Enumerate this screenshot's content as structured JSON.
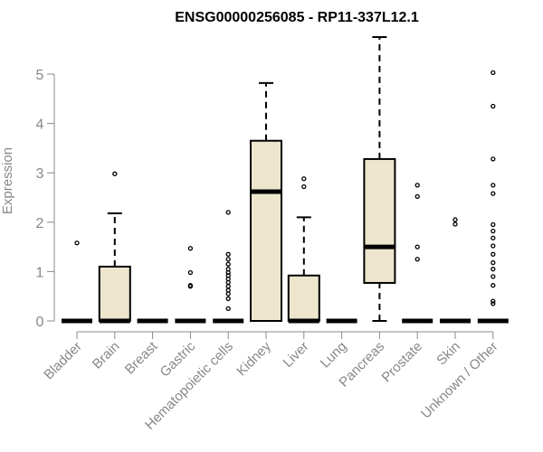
{
  "chart_data": {
    "type": "boxplot",
    "title": "ENSG00000256085 - RP11-337L12.1",
    "xlabel": "",
    "ylabel": "Expression",
    "ylim": [
      0,
      5.5
    ],
    "yticks": [
      "0",
      "1",
      "2",
      "3",
      "4",
      "5"
    ],
    "box_fill": "#ede6cd",
    "categories": [
      "Bladder",
      "Brain",
      "Breast",
      "Gastric",
      "Hematopoietic cells",
      "Kidney",
      "Liver",
      "Lung",
      "Pancreas",
      "Prostate",
      "Skin",
      "Unknown / Other"
    ],
    "boxes": [
      {
        "min": 0,
        "q1": 0,
        "median": 0,
        "q3": 0,
        "max": 0,
        "outliers": [
          1.58
        ]
      },
      {
        "min": 0,
        "q1": 0,
        "median": 0,
        "q3": 1.1,
        "max": 2.18,
        "outliers": [
          2.98
        ]
      },
      {
        "min": 0,
        "q1": 0,
        "median": 0,
        "q3": 0,
        "max": 0,
        "outliers": []
      },
      {
        "min": 0,
        "q1": 0,
        "median": 0,
        "q3": 0,
        "max": 0,
        "outliers": [
          0.7,
          0.72,
          0.98,
          1.47
        ]
      },
      {
        "min": 0,
        "q1": 0,
        "median": 0,
        "q3": 0,
        "max": 0,
        "outliers": [
          0.25,
          0.45,
          0.55,
          0.62,
          0.7,
          0.78,
          0.85,
          0.92,
          0.98,
          1.05,
          1.15,
          1.25,
          1.35,
          2.2
        ]
      },
      {
        "min": 0,
        "q1": 0,
        "median": 2.62,
        "q3": 3.65,
        "max": 4.82,
        "outliers": []
      },
      {
        "min": 0,
        "q1": 0,
        "median": 0,
        "q3": 0.92,
        "max": 2.1,
        "outliers": [
          2.72,
          2.88
        ]
      },
      {
        "min": 0,
        "q1": 0,
        "median": 0,
        "q3": 0,
        "max": 0,
        "outliers": []
      },
      {
        "min": 0,
        "q1": 0.77,
        "median": 1.5,
        "q3": 3.28,
        "max": 5.75,
        "outliers": []
      },
      {
        "min": 0,
        "q1": 0,
        "median": 0,
        "q3": 0,
        "max": 0,
        "outliers": [
          1.25,
          1.5,
          2.52,
          2.75
        ]
      },
      {
        "min": 0,
        "q1": 0,
        "median": 0,
        "q3": 0,
        "max": 0,
        "outliers": [
          1.96,
          2.05
        ]
      },
      {
        "min": 0,
        "q1": 0,
        "median": 0,
        "q3": 0,
        "max": 0,
        "outliers": [
          0.35,
          0.4,
          0.72,
          0.9,
          1.05,
          1.18,
          1.35,
          1.52,
          1.68,
          1.82,
          1.95,
          2.58,
          2.75,
          3.28,
          4.35,
          5.03
        ]
      }
    ]
  }
}
